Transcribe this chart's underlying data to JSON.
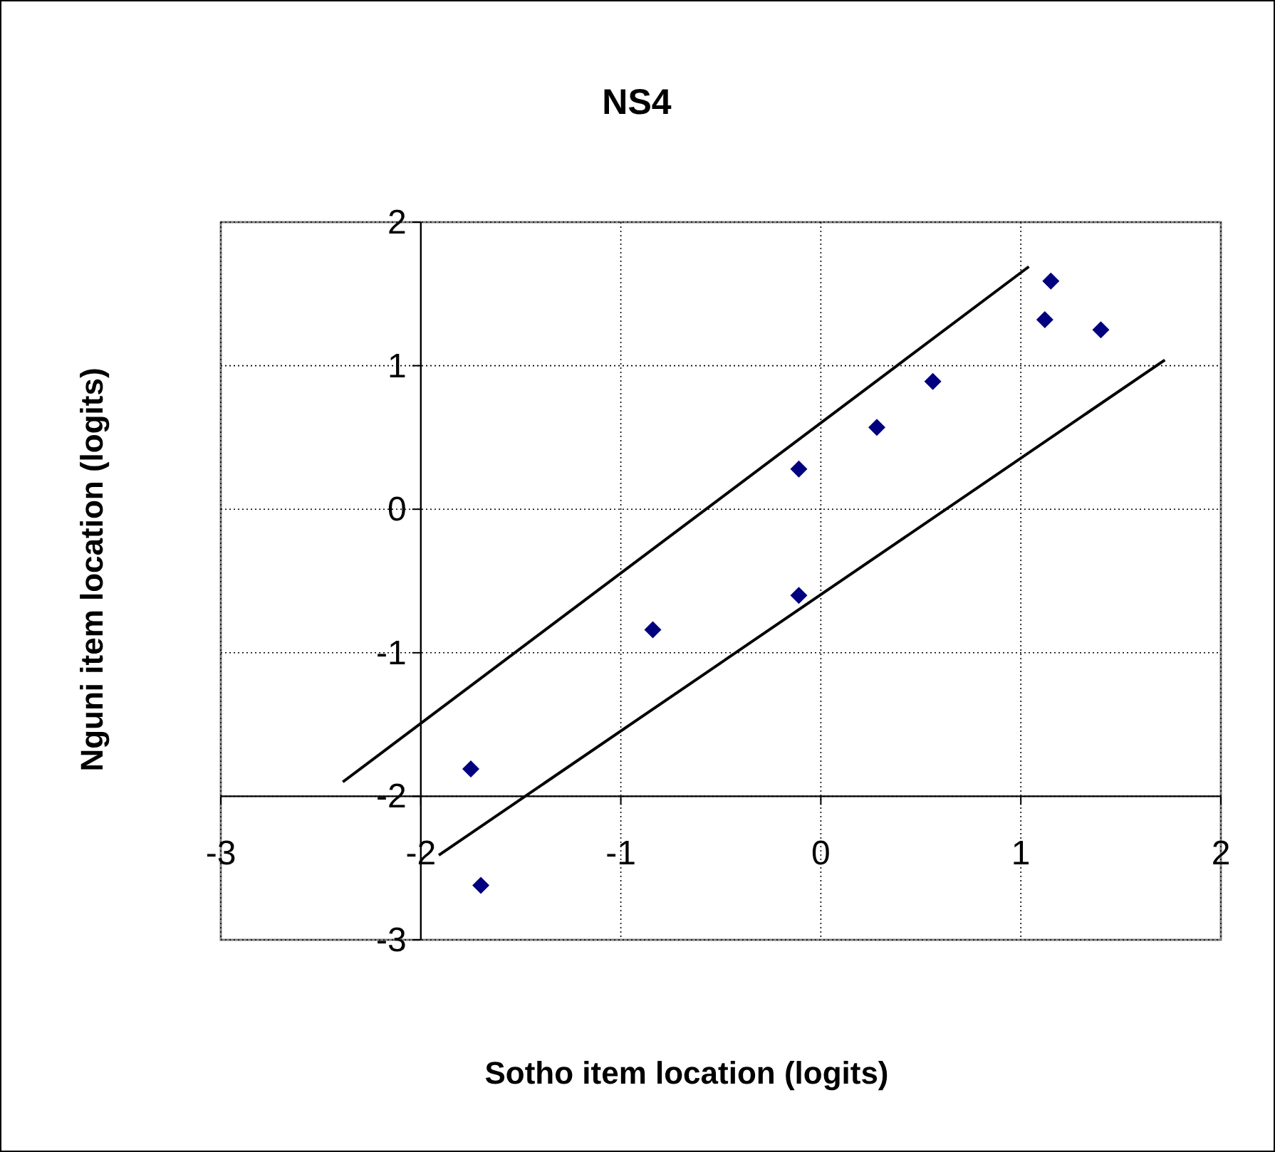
{
  "chart_data": {
    "type": "scatter",
    "title": "NS4",
    "xlabel": "Sotho item location (logits)",
    "ylabel": "Nguni item location (logits)",
    "xlim": [
      -3,
      2
    ],
    "xticks": [
      -3,
      -2,
      -1,
      0,
      1,
      2
    ],
    "ylim": [
      -3,
      2
    ],
    "yticks": [
      -3,
      -2,
      -1,
      0,
      1,
      2
    ],
    "grid": true,
    "marker": "diamond",
    "series": [
      {
        "color": "#000080",
        "x": [
          -1.75,
          -1.7,
          -0.84,
          -0.11,
          -0.11,
          0.28,
          0.56,
          1.12,
          1.15,
          1.4
        ],
        "values": [
          -1.81,
          -2.62,
          -0.84,
          0.28,
          -0.6,
          0.57,
          0.89,
          1.32,
          1.59,
          1.25
        ]
      },
      {
        "type": "line",
        "color": "#000000",
        "marker": "none",
        "x": [
          -2.39,
          1.04
        ],
        "values": [
          -1.9,
          1.69
        ]
      },
      {
        "type": "line",
        "color": "#000000",
        "marker": "none",
        "x": [
          -1.91,
          1.72
        ],
        "values": [
          -2.41,
          1.04
        ]
      }
    ]
  }
}
